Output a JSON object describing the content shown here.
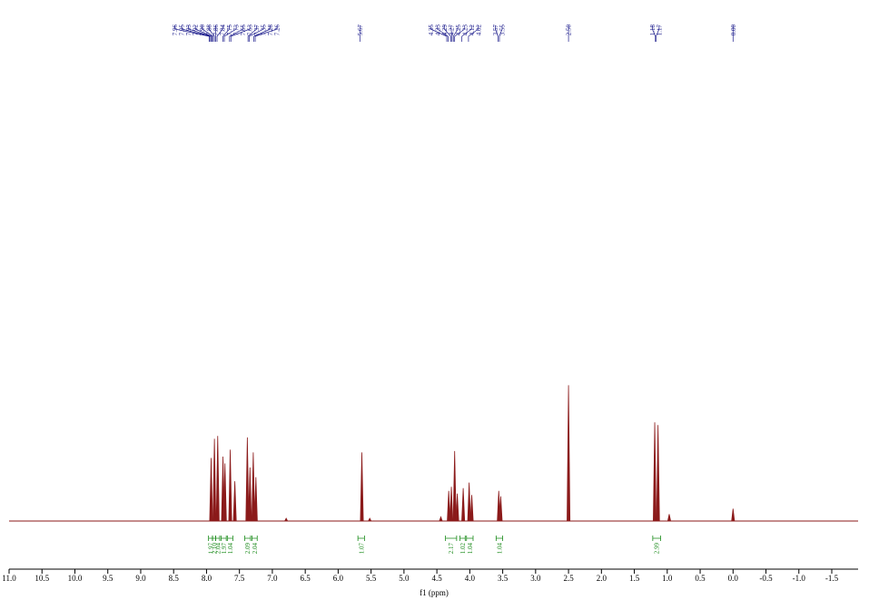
{
  "chart_data": {
    "type": "spectrum",
    "xlabel": "f1 (ppm)",
    "xlim": [
      11.0,
      -1.9
    ],
    "xticks": [
      {
        "value": 11,
        "label": "11.0"
      },
      10.5,
      {
        "value": 10,
        "label": "10.0"
      },
      9.5,
      {
        "value": 9,
        "label": "9.0"
      },
      8.5,
      {
        "value": 8,
        "label": "8.0"
      },
      7.5,
      {
        "value": 7,
        "label": "7.0"
      },
      6.5,
      {
        "value": 6,
        "label": "6.0"
      },
      5.5,
      {
        "value": 5,
        "label": "5.0"
      },
      4.5,
      {
        "value": 4,
        "label": "4.0"
      },
      3.5,
      {
        "value": 3,
        "label": "3.0"
      },
      2.5,
      {
        "value": 2,
        "label": "2.0"
      },
      1.5,
      {
        "value": 1,
        "label": "1.0"
      },
      0.5,
      {
        "value": 0,
        "label": "0.0"
      },
      -0.5,
      {
        "value": -1,
        "label": "-1.0"
      },
      -1.5
    ],
    "ylim": [
      0,
      3.6
    ],
    "color": "#8b1a1a",
    "label_color": "#1a1a8b",
    "integral_color": "#1a8b1a",
    "peaks": [
      {
        "ppm": 7.93,
        "height": 0.46
      },
      {
        "ppm": 7.88,
        "height": 0.6
      },
      {
        "ppm": 7.83,
        "height": 0.62
      },
      {
        "ppm": 7.75,
        "height": 0.47
      },
      {
        "ppm": 7.72,
        "height": 0.42
      },
      {
        "ppm": 7.64,
        "height": 0.52
      },
      {
        "ppm": 7.57,
        "height": 0.29
      },
      {
        "ppm": 7.38,
        "height": 0.61
      },
      {
        "ppm": 7.34,
        "height": 0.39
      },
      {
        "ppm": 7.29,
        "height": 0.5
      },
      {
        "ppm": 7.25,
        "height": 0.32
      },
      {
        "ppm": 6.79,
        "height": 0.02
      },
      {
        "ppm": 5.64,
        "height": 0.5
      },
      {
        "ppm": 5.52,
        "height": 0.02
      },
      {
        "ppm": 4.44,
        "height": 0.03
      },
      {
        "ppm": 4.32,
        "height": 0.22
      },
      {
        "ppm": 4.28,
        "height": 0.25
      },
      {
        "ppm": 4.23,
        "height": 0.51
      },
      {
        "ppm": 4.19,
        "height": 0.2
      },
      {
        "ppm": 4.1,
        "height": 0.24
      },
      {
        "ppm": 4.01,
        "height": 0.28
      },
      {
        "ppm": 3.97,
        "height": 0.19
      },
      {
        "ppm": 3.56,
        "height": 0.22
      },
      {
        "ppm": 3.53,
        "height": 0.18
      },
      {
        "ppm": 2.5,
        "height": 0.99
      },
      {
        "ppm": 1.19,
        "height": 0.72
      },
      {
        "ppm": 1.14,
        "height": 0.7
      },
      {
        "ppm": 0.97,
        "height": 0.05
      },
      {
        "ppm": 0.0,
        "height": 0.09
      }
    ],
    "peak_labels": [
      [
        "7.96",
        "7.95",
        "7.93",
        "7.92",
        "7.90",
        "7.88",
        "7.86",
        "7.84",
        "7.75",
        "7.73",
        "7.65",
        "7.63",
        "7.37",
        "7.35",
        "7.28",
        "7.26"
      ],
      [
        "5.67"
      ],
      [
        "4.35",
        "4.33",
        "4.29",
        "4.27",
        "4.25",
        "4.23",
        "4.12",
        "4.02"
      ],
      [
        "3.57",
        "3.55"
      ],
      [
        "2.50"
      ],
      [
        "1.18",
        "1.17"
      ],
      [
        "0.00"
      ]
    ],
    "integrals": [
      {
        "from": 7.97,
        "to": 7.91,
        "label": "1.97"
      },
      {
        "from": 7.91,
        "to": 7.86,
        "label": "2.10"
      },
      {
        "from": 7.86,
        "to": 7.8,
        "label": "2.04"
      },
      {
        "from": 7.78,
        "to": 7.7,
        "label": "1.97"
      },
      {
        "from": 7.68,
        "to": 7.6,
        "label": "1.04"
      },
      {
        "from": 7.42,
        "to": 7.33,
        "label": "2.09"
      },
      {
        "from": 7.31,
        "to": 7.23,
        "label": "2.04"
      },
      {
        "from": 5.7,
        "to": 5.6,
        "label": "1.07"
      },
      {
        "from": 4.37,
        "to": 4.2,
        "label": "2.17"
      },
      {
        "from": 4.15,
        "to": 4.07,
        "label": "1.02"
      },
      {
        "from": 4.05,
        "to": 3.95,
        "label": "1.04"
      },
      {
        "from": 3.6,
        "to": 3.5,
        "label": "1.04"
      },
      {
        "from": 1.22,
        "to": 1.1,
        "label": "2.99"
      }
    ]
  }
}
